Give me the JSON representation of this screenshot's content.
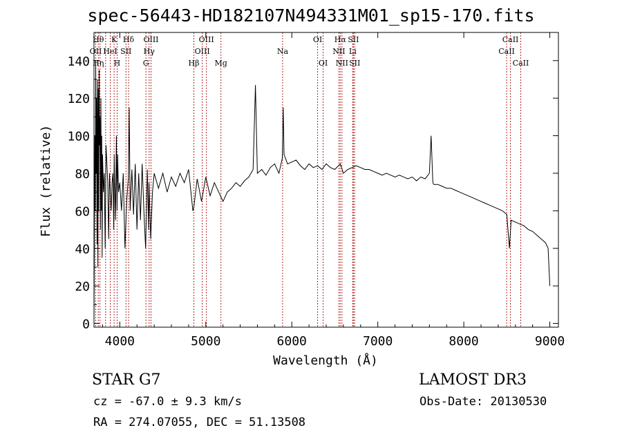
{
  "header": {
    "title": "spec-56443-HD182107N494331M01_sp15-170.fits"
  },
  "footer": {
    "object": "STAR    G7",
    "survey": "LAMOST DR3",
    "cz": "cz = -67.0 ± 9.3 km/s",
    "obs_date": "Obs-Date: 20130530",
    "radec": "RA = 274.07055, DEC =  51.13508"
  },
  "chart_data": {
    "type": "line",
    "title": "spec-56443-HD182107N494331M01_sp15-170.fits",
    "xlabel": "Wavelength (Å)",
    "ylabel": "Flux (relative)",
    "xlim": [
      3700,
      9100
    ],
    "ylim": [
      -2,
      155
    ],
    "xticks": [
      4000,
      5000,
      6000,
      7000,
      8000,
      9000
    ],
    "yticks": [
      0,
      20,
      40,
      60,
      80,
      100,
      120,
      140
    ],
    "line_color": "#000000",
    "marker_color": "#b22222",
    "series": [
      {
        "x": [
          3700,
          3705,
          3710,
          3715,
          3720,
          3725,
          3730,
          3735,
          3740,
          3745,
          3750,
          3755,
          3760,
          3765,
          3770,
          3775,
          3780,
          3785,
          3790,
          3795,
          3800,
          3810,
          3820,
          3830,
          3840,
          3850,
          3860,
          3870,
          3880,
          3890,
          3900,
          3910,
          3920,
          3930,
          3935,
          3940,
          3950,
          3960,
          3968,
          3975,
          3985,
          4000,
          4020,
          4040,
          4060,
          4080,
          4100,
          4110,
          4120,
          4140,
          4160,
          4180,
          4200,
          4220,
          4240,
          4260,
          4280,
          4300,
          4320,
          4335,
          4340,
          4360,
          4380,
          4400,
          4450,
          4500,
          4550,
          4600,
          4650,
          4700,
          4750,
          4800,
          4850,
          4861,
          4900,
          4950,
          5000,
          5050,
          5100,
          5150,
          5200,
          5250,
          5300,
          5350,
          5400,
          5450,
          5500,
          5550,
          5577,
          5600,
          5650,
          5700,
          5750,
          5800,
          5850,
          5890,
          5900,
          5910,
          5950,
          6000,
          6050,
          6100,
          6150,
          6200,
          6250,
          6300,
          6350,
          6400,
          6450,
          6500,
          6563,
          6600,
          6650,
          6700,
          6750,
          6800,
          6850,
          6900,
          6950,
          7000,
          7050,
          7100,
          7150,
          7200,
          7250,
          7300,
          7350,
          7400,
          7450,
          7500,
          7550,
          7600,
          7620,
          7640,
          7650,
          7700,
          7750,
          7800,
          7850,
          7900,
          7950,
          8000,
          8050,
          8100,
          8150,
          8200,
          8250,
          8300,
          8350,
          8400,
          8450,
          8500,
          8530,
          8550,
          8600,
          8650,
          8700,
          8750,
          8800,
          8850,
          8900,
          8950,
          8980,
          8990,
          9000
        ],
        "y": [
          0,
          40,
          100,
          60,
          140,
          80,
          120,
          42,
          130,
          30,
          125,
          60,
          135,
          95,
          110,
          50,
          120,
          60,
          100,
          35,
          90,
          70,
          80,
          40,
          95,
          85,
          75,
          45,
          80,
          70,
          60,
          75,
          80,
          50,
          90,
          75,
          55,
          100,
          60,
          90,
          70,
          75,
          60,
          80,
          40,
          65,
          78,
          115,
          60,
          82,
          58,
          85,
          50,
          80,
          55,
          85,
          60,
          40,
          82,
          50,
          75,
          45,
          70,
          80,
          72,
          80,
          70,
          78,
          73,
          80,
          75,
          82,
          60,
          62,
          77,
          65,
          78,
          68,
          75,
          70,
          65,
          70,
          72,
          75,
          73,
          76,
          78,
          82,
          127,
          80,
          82,
          79,
          83,
          85,
          80,
          88,
          115,
          90,
          85,
          86,
          87,
          84,
          82,
          85,
          83,
          84,
          82,
          85,
          83,
          82,
          85,
          80,
          82,
          83,
          84,
          83,
          82,
          82,
          81,
          80,
          79,
          80,
          79,
          78,
          79,
          78,
          77,
          78,
          76,
          78,
          77,
          80,
          100,
          75,
          74,
          74,
          73,
          72,
          72,
          71,
          70,
          69,
          68,
          67,
          66,
          65,
          64,
          63,
          62,
          61,
          60,
          58,
          40,
          55,
          54,
          53,
          52,
          50,
          49,
          47,
          45,
          43,
          40,
          30,
          20
        ]
      }
    ],
    "line_markers": [
      {
        "wl": 3720,
        "upper": "",
        "mid": "OII",
        "low": ""
      },
      {
        "wl": 3750,
        "upper": "Hθ",
        "mid": "",
        "low": "Hη"
      },
      {
        "wl": 3770,
        "upper": "",
        "mid": "",
        "low": ""
      },
      {
        "wl": 3835,
        "upper": "",
        "mid": "",
        "low": ""
      },
      {
        "wl": 3889,
        "upper": "",
        "mid": "HeI",
        "low": ""
      },
      {
        "wl": 3934,
        "upper": "K",
        "mid": "",
        "low": ""
      },
      {
        "wl": 3969,
        "upper": "",
        "mid": "",
        "low": "H"
      },
      {
        "wl": 4072,
        "upper": "",
        "mid": "SII",
        "low": ""
      },
      {
        "wl": 4102,
        "upper": "Hδ",
        "mid": "",
        "low": ""
      },
      {
        "wl": 4304,
        "upper": "",
        "mid": "",
        "low": "G"
      },
      {
        "wl": 4341,
        "upper": "",
        "mid": "Hγ",
        "low": ""
      },
      {
        "wl": 4363,
        "upper": "OIII",
        "mid": "",
        "low": ""
      },
      {
        "wl": 4861,
        "upper": "",
        "mid": "",
        "low": "Hβ"
      },
      {
        "wl": 4959,
        "upper": "",
        "mid": "OIII",
        "low": ""
      },
      {
        "wl": 5007,
        "upper": "OIII",
        "mid": "",
        "low": ""
      },
      {
        "wl": 5176,
        "upper": "",
        "mid": "",
        "low": "Mg"
      },
      {
        "wl": 5893,
        "upper": "",
        "mid": "Na",
        "low": ""
      },
      {
        "wl": 6300,
        "upper": "OI",
        "mid": "",
        "low": ""
      },
      {
        "wl": 6364,
        "upper": "",
        "mid": "",
        "low": "OI"
      },
      {
        "wl": 6548,
        "upper": "",
        "mid": "NII",
        "low": ""
      },
      {
        "wl": 6563,
        "upper": "Hα",
        "mid": "",
        "low": ""
      },
      {
        "wl": 6583,
        "upper": "",
        "mid": "",
        "low": "NII"
      },
      {
        "wl": 6708,
        "upper": "",
        "mid": "Li",
        "low": ""
      },
      {
        "wl": 6716,
        "upper": "SII",
        "mid": "",
        "low": ""
      },
      {
        "wl": 6731,
        "upper": "",
        "mid": "",
        "low": "SII"
      },
      {
        "wl": 8498,
        "upper": "",
        "mid": "CaII",
        "low": ""
      },
      {
        "wl": 8542,
        "upper": "CaII",
        "mid": "",
        "low": ""
      },
      {
        "wl": 8662,
        "upper": "",
        "mid": "",
        "low": "CaII"
      }
    ]
  }
}
